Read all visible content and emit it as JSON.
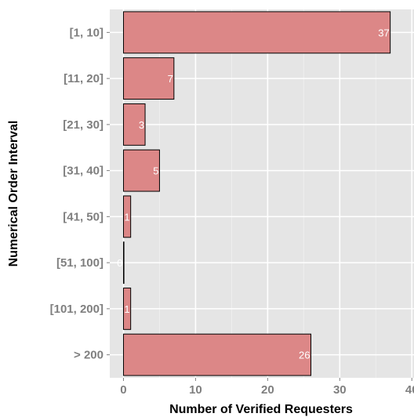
{
  "chart_data": {
    "type": "bar",
    "orientation": "horizontal",
    "categories": [
      "[1, 10]",
      "[11, 20]",
      "[21, 30]",
      "[31, 40]",
      "[41, 50]",
      "[51, 100]",
      "[101, 200]",
      "> 200"
    ],
    "values": [
      37,
      7,
      3,
      5,
      1,
      0,
      1,
      26
    ],
    "data_labels": [
      "37",
      "7",
      "3",
      "5",
      "1",
      "0",
      "1",
      "26"
    ],
    "xlabel": "Number of Verified Requesters",
    "ylabel": "Numerical Order Interval",
    "xlim": [
      -1.9,
      40.3
    ],
    "xticks": [
      0,
      10,
      20,
      30,
      40
    ],
    "xtick_labels": [
      "0",
      "10",
      "20",
      "30",
      "40"
    ],
    "grid": true,
    "colors": {
      "bar_fill": "#dc8787",
      "bar_stroke": "#000000",
      "panel_background": "#e5e5e5",
      "gridline_major": "#ffffff",
      "gridline_minor": "#f0f0f0",
      "tick_text": "#7f7f7f",
      "data_label_text": "#ffffff"
    }
  }
}
